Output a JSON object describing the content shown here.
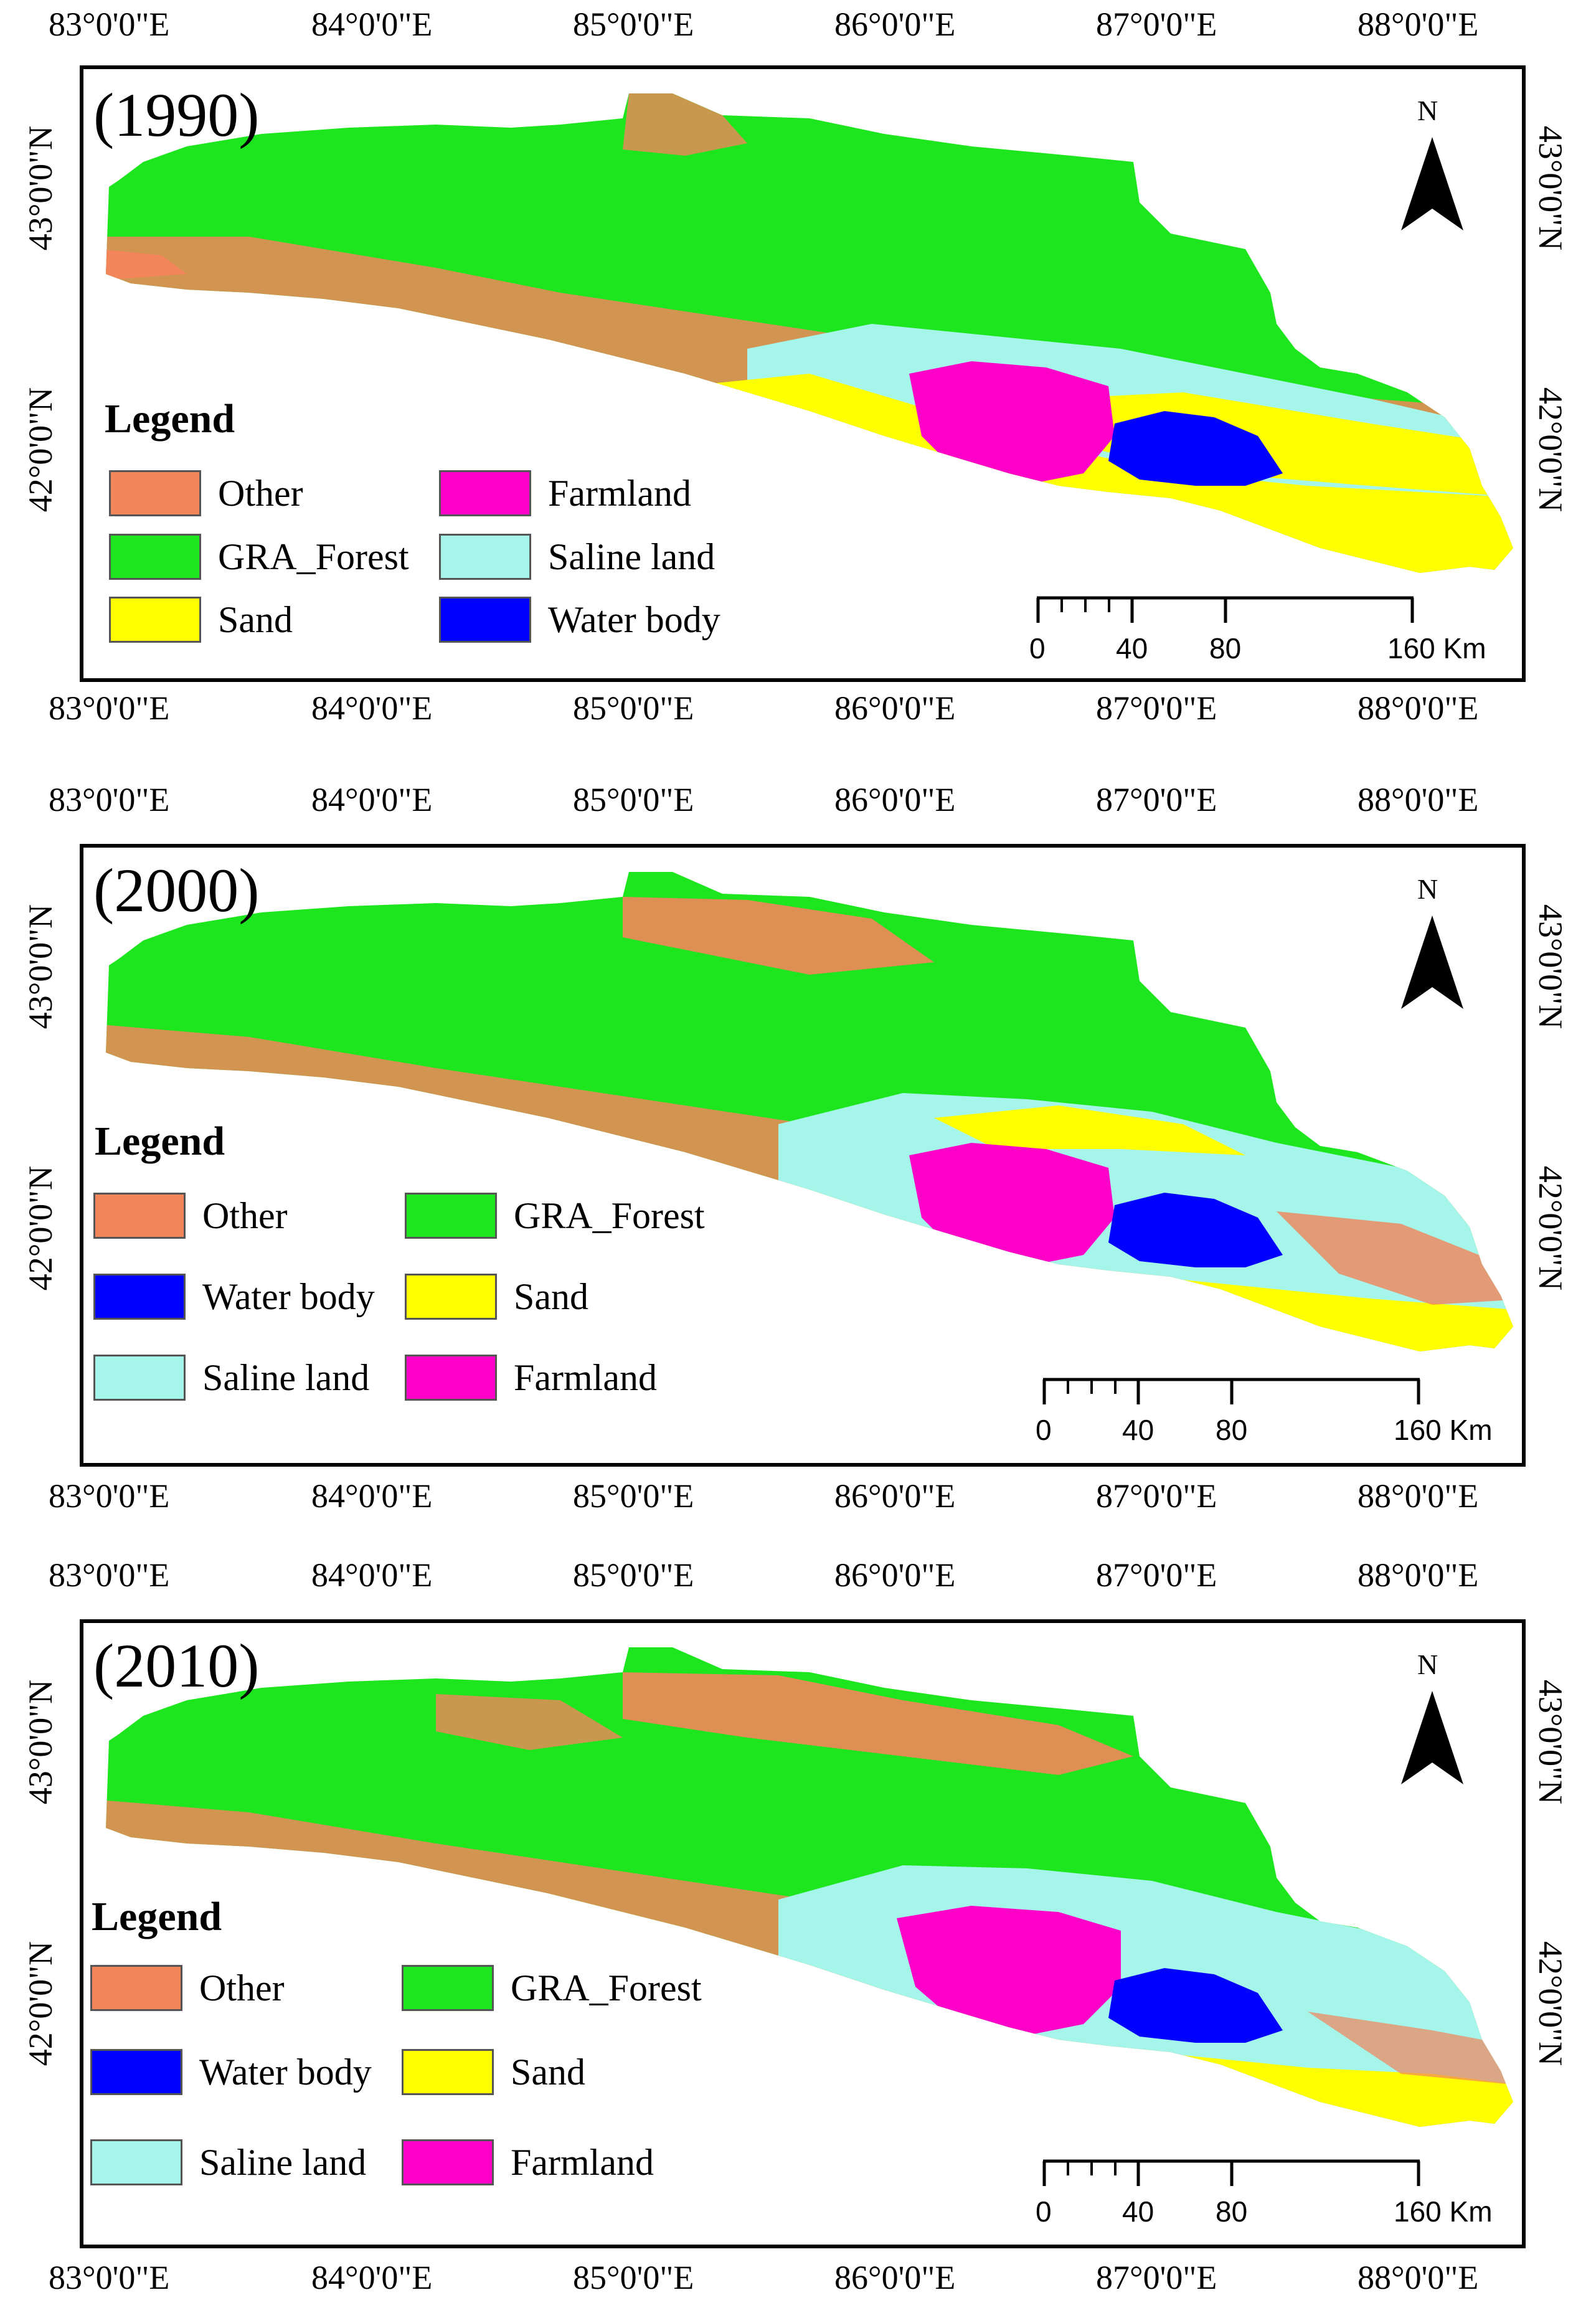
{
  "longitude_labels": [
    "83°0'0\"E",
    "84°0'0\"E",
    "85°0'0\"E",
    "86°0'0\"E",
    "87°0'0\"E",
    "88°0'0\"E"
  ],
  "latitude_labels": [
    "43°0'0\"N",
    "42°0'0\"N"
  ],
  "north_label": "N",
  "legend_title": "Legend",
  "scale_labels": [
    "0",
    "40",
    "80",
    "160 Km"
  ],
  "colors": {
    "Other": "#f2855a",
    "GRA_Forest": "#1ee61e",
    "Sand": "#ffff00",
    "Farmland": "#ff00c8",
    "Saline land": "#a6f5ea",
    "Water body": "#0000ff"
  },
  "panels": [
    {
      "year": "(1990)",
      "legend": [
        "Other",
        "Farmland",
        "GRA_Forest",
        "Saline land",
        "Sand",
        "Water body"
      ]
    },
    {
      "year": "(2000)",
      "legend": [
        "Other",
        "GRA_Forest",
        "Water body",
        "Sand",
        "Saline land",
        "Farmland"
      ]
    },
    {
      "year": "(2010)",
      "legend": [
        "Other",
        "GRA_Forest",
        "Water body",
        "Sand",
        "Saline land",
        "Farmland"
      ]
    }
  ]
}
